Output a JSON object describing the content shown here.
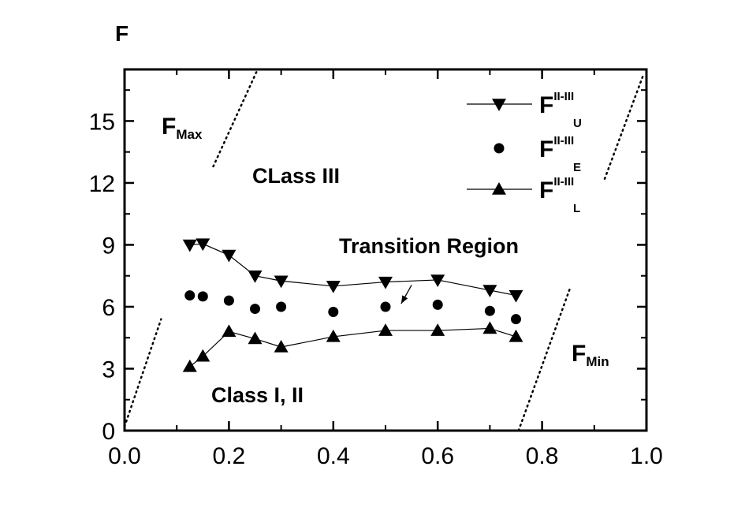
{
  "chart_data": {
    "type": "scatter",
    "ylabel": "F",
    "xlabel": "",
    "xlim": [
      0.0,
      1.0
    ],
    "ylim": [
      0,
      17.5
    ],
    "x_ticks": [
      0.0,
      0.2,
      0.4,
      0.6,
      0.8,
      1.0
    ],
    "x_tick_labels": [
      "0.0",
      "0.2",
      "0.4",
      "0.6",
      "0.8",
      "1.0"
    ],
    "y_ticks": [
      0,
      3,
      6,
      9,
      12,
      15
    ],
    "y_tick_labels": [
      "0",
      "3",
      "6",
      "9",
      "12",
      "15"
    ],
    "grid": false,
    "legend_position": "top-right",
    "series": [
      {
        "name": "F^{II-III}_U",
        "name_main": "F",
        "name_sup": "II-III",
        "name_sub": "U",
        "marker": "triangle-down",
        "line": true,
        "points": [
          [
            0.125,
            9.0
          ],
          [
            0.15,
            9.05
          ],
          [
            0.2,
            8.5
          ],
          [
            0.25,
            7.5
          ],
          [
            0.3,
            7.25
          ],
          [
            0.4,
            7.0
          ],
          [
            0.5,
            7.2
          ],
          [
            0.6,
            7.3
          ],
          [
            0.7,
            6.8
          ],
          [
            0.75,
            6.55
          ]
        ]
      },
      {
        "name": "F^{II-III}_E",
        "name_main": "F",
        "name_sup": "II-III",
        "name_sub": "E",
        "marker": "circle",
        "line": false,
        "points": [
          [
            0.125,
            6.55
          ],
          [
            0.15,
            6.5
          ],
          [
            0.2,
            6.3
          ],
          [
            0.25,
            5.9
          ],
          [
            0.3,
            6.0
          ],
          [
            0.4,
            5.75
          ],
          [
            0.5,
            6.0
          ],
          [
            0.6,
            6.1
          ],
          [
            0.7,
            5.8
          ],
          [
            0.75,
            5.4
          ]
        ]
      },
      {
        "name": "F^{II-III}_L",
        "name_main": "F",
        "name_sup": "II-III",
        "name_sub": "L",
        "marker": "triangle-up",
        "line": true,
        "points": [
          [
            0.125,
            3.1
          ],
          [
            0.15,
            3.6
          ],
          [
            0.2,
            4.8
          ],
          [
            0.25,
            4.45
          ],
          [
            0.3,
            4.05
          ],
          [
            0.4,
            4.55
          ],
          [
            0.5,
            4.85
          ],
          [
            0.6,
            4.85
          ],
          [
            0.7,
            4.95
          ],
          [
            0.75,
            4.55
          ]
        ]
      }
    ],
    "reference_lines": [
      {
        "name": "F_Max",
        "style": "dotted",
        "segments": [
          [
            [
              0.0,
              0.2
            ],
            [
              0.07,
              5.4
            ]
          ],
          [
            [
              0.17,
              12.8
            ],
            [
              0.255,
              17.5
            ]
          ]
        ]
      },
      {
        "name": "F_Min",
        "style": "dotted",
        "segments": [
          [
            [
              0.755,
              0.0
            ],
            [
              0.855,
              7.0
            ]
          ],
          [
            [
              0.92,
              12.2
            ],
            [
              0.995,
              17.3
            ]
          ]
        ]
      }
    ],
    "annotations": {
      "fmax": {
        "main": "F",
        "sub": "Max"
      },
      "fmin": {
        "main": "F",
        "sub": "Min"
      },
      "class3": "CLass III",
      "class12": "Class I, II",
      "transition": "Transition Region",
      "arrow_from": [
        0.55,
        7.05
      ],
      "arrow_to": [
        0.53,
        6.15
      ]
    }
  }
}
